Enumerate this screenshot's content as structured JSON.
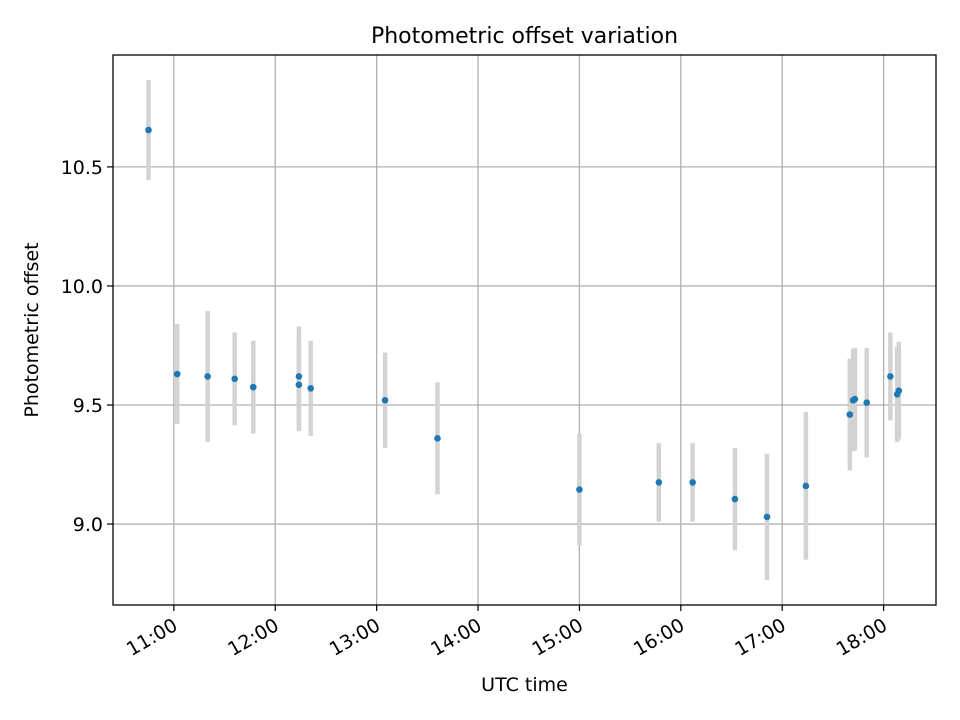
{
  "chart_data": {
    "type": "scatter",
    "title": "Photometric offset variation",
    "xlabel": "UTC time",
    "ylabel": "Photometric offset",
    "x_tick_labels": [
      "11:00",
      "12:00",
      "13:00",
      "14:00",
      "15:00",
      "16:00",
      "17:00",
      "18:00"
    ],
    "x_ticks": [
      "11:00",
      "12:00",
      "13:00",
      "14:00",
      "15:00",
      "16:00",
      "17:00",
      "18:00"
    ],
    "y_tick_labels": [
      "9.0",
      "9.5",
      "10.0",
      "10.5"
    ],
    "y_ticks": [
      9.0,
      9.5,
      10.0,
      10.5
    ],
    "xlim": [
      "10:24",
      "18:31"
    ],
    "ylim": [
      8.66,
      10.97
    ],
    "grid": true,
    "marker_color": "#1f77b4",
    "errorbar_color": "#d3d3d3",
    "points": [
      {
        "time": "10:45",
        "y": 10.655,
        "yerr": 0.21
      },
      {
        "time": "11:02",
        "y": 9.63,
        "yerr": 0.21
      },
      {
        "time": "11:20",
        "y": 9.62,
        "yerr": 0.275
      },
      {
        "time": "11:36",
        "y": 9.61,
        "yerr": 0.195
      },
      {
        "time": "11:47",
        "y": 9.575,
        "yerr": 0.195
      },
      {
        "time": "12:14",
        "y": 9.62,
        "yerr": 0.21
      },
      {
        "time": "12:14",
        "y": 9.585,
        "yerr": 0.195
      },
      {
        "time": "12:21",
        "y": 9.57,
        "yerr": 0.2
      },
      {
        "time": "13:05",
        "y": 9.52,
        "yerr": 0.2
      },
      {
        "time": "13:36",
        "y": 9.36,
        "yerr": 0.235
      },
      {
        "time": "15:00",
        "y": 9.145,
        "yerr": 0.235
      },
      {
        "time": "15:47",
        "y": 9.175,
        "yerr": 0.165
      },
      {
        "time": "16:07",
        "y": 9.175,
        "yerr": 0.165
      },
      {
        "time": "16:32",
        "y": 9.105,
        "yerr": 0.215
      },
      {
        "time": "16:51",
        "y": 9.03,
        "yerr": 0.265
      },
      {
        "time": "17:14",
        "y": 9.16,
        "yerr": 0.31
      },
      {
        "time": "17:40",
        "y": 9.46,
        "yerr": 0.235
      },
      {
        "time": "17:42",
        "y": 9.52,
        "yerr": 0.215
      },
      {
        "time": "17:43",
        "y": 9.525,
        "yerr": 0.215
      },
      {
        "time": "17:50",
        "y": 9.51,
        "yerr": 0.23
      },
      {
        "time": "18:04",
        "y": 9.62,
        "yerr": 0.185
      },
      {
        "time": "18:08",
        "y": 9.545,
        "yerr": 0.2
      },
      {
        "time": "18:09",
        "y": 9.56,
        "yerr": 0.205
      }
    ]
  }
}
